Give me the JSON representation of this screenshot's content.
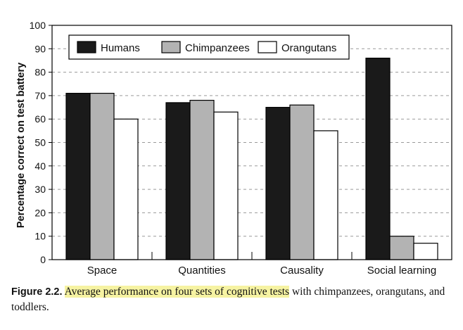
{
  "chart_data": {
    "type": "bar",
    "title": "",
    "xlabel": "",
    "ylabel": "Percentage correct on test battery",
    "ylim": [
      0,
      100
    ],
    "yticks": [
      0,
      10,
      20,
      30,
      40,
      50,
      60,
      70,
      80,
      90,
      100
    ],
    "grid": true,
    "legend_position": "top-left",
    "categories": [
      "Space",
      "Quantities",
      "Causality",
      "Social learning"
    ],
    "series": [
      {
        "name": "Humans",
        "color": "#1a1a1a",
        "values": [
          71,
          67,
          65,
          86
        ]
      },
      {
        "name": "Chimpanzees",
        "color": "#b3b3b3",
        "values": [
          71,
          68,
          66,
          10
        ]
      },
      {
        "name": "Orangutans",
        "color": "#ffffff",
        "values": [
          60,
          63,
          55,
          7
        ]
      }
    ]
  },
  "caption": {
    "figure_label": "Figure 2.2.",
    "highlighted_text": "Average performance on four sets of cognitive tests",
    "rest_text": "with chimpanzees, orangutans, and toddlers."
  }
}
